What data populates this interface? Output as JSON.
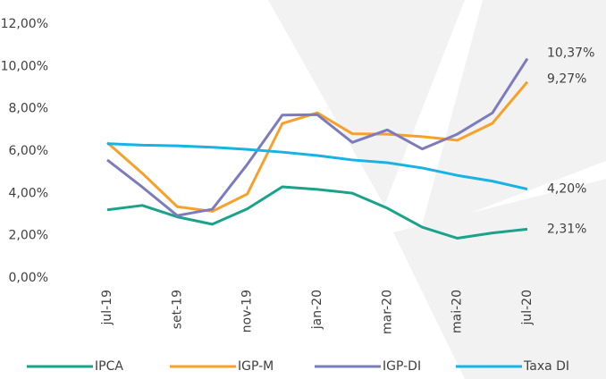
{
  "chart_data": {
    "type": "line",
    "categories": [
      "jul-19",
      null,
      "set-19",
      null,
      "nov-19",
      null,
      "jan-20",
      null,
      "mar-20",
      null,
      "mai-20",
      null,
      "jul-20"
    ],
    "series": [
      {
        "name": "IPCA",
        "color": "#1aa38a",
        "values": [
          3.22,
          3.43,
          2.89,
          2.54,
          3.27,
          4.31,
          4.19,
          4.01,
          3.3,
          2.4,
          1.88,
          2.13,
          2.31
        ],
        "value_labels": [
          null,
          null,
          null,
          null,
          null,
          null,
          null,
          null,
          null,
          null,
          null,
          null,
          "2,31%"
        ]
      },
      {
        "name": "IGP-M",
        "color": "#f7a02a",
        "values": [
          6.4,
          4.95,
          3.37,
          3.15,
          3.97,
          7.3,
          7.81,
          6.82,
          6.8,
          6.68,
          6.51,
          7.31,
          9.27
        ],
        "value_labels": [
          null,
          null,
          null,
          null,
          null,
          null,
          null,
          null,
          null,
          null,
          null,
          null,
          "9,27%"
        ]
      },
      {
        "name": "IGP-DI",
        "color": "#7b7bbd",
        "values": [
          5.58,
          4.3,
          2.95,
          3.25,
          5.37,
          7.7,
          7.72,
          6.41,
          7.0,
          6.1,
          6.8,
          7.8,
          10.37
        ],
        "value_labels": [
          null,
          null,
          null,
          null,
          null,
          null,
          null,
          null,
          null,
          null,
          null,
          null,
          "10,37%"
        ]
      },
      {
        "name": "Taxa DI",
        "color": "#17b2e6",
        "values": [
          6.35,
          6.28,
          6.25,
          6.18,
          6.08,
          5.95,
          5.79,
          5.58,
          5.45,
          5.2,
          4.85,
          4.58,
          4.2
        ],
        "value_labels": [
          null,
          null,
          null,
          null,
          null,
          null,
          null,
          null,
          null,
          null,
          null,
          null,
          "4,20%"
        ]
      }
    ],
    "ylim": [
      0,
      12
    ],
    "yticks": [
      {
        "value": 0,
        "label": "0,00%"
      },
      {
        "value": 2,
        "label": "2,00%"
      },
      {
        "value": 4,
        "label": "4,00%"
      },
      {
        "value": 6,
        "label": "6,00%"
      },
      {
        "value": 8,
        "label": "8,00%"
      },
      {
        "value": 10,
        "label": "10,00%"
      },
      {
        "value": 12,
        "label": "12,00%"
      }
    ],
    "grid": false,
    "legend": "bottom"
  }
}
